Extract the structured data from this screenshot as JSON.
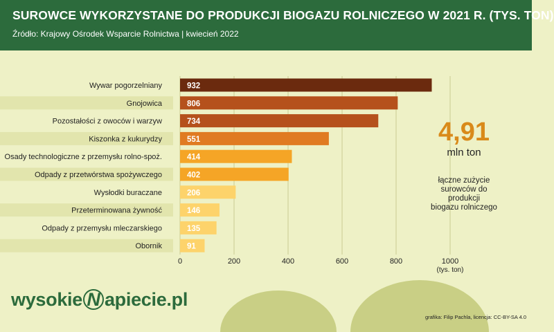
{
  "title": "SUROWCE WYKORZYSTANE DO PRODUKCJI BIOGAZU ROLNICZEGO W 2021 R. (TYS. TON)",
  "subtitle": "Źródło:  Krajowy Ośrodek Wsparcie Rolnictwa | kwiecień 2022",
  "total": {
    "value": "4,91",
    "unit": "mln ton",
    "description_lines": [
      "łączne zużycie",
      "surowców do",
      "produkcji",
      "biogazu rolniczego"
    ]
  },
  "logo": {
    "left": "wysokie",
    "n": "N",
    "right": "apiecie.pl"
  },
  "credit": "grafika: Filip Pachla, licencja: CC-BY-SA 4.0",
  "colors": {
    "header": "#2c6b3c",
    "background": "#eef1c6",
    "accent": "#d98a1a"
  },
  "chart_data": {
    "type": "bar",
    "orientation": "horizontal",
    "title": "SUROWCE WYKORZYSTANE DO PRODUKCJI BIOGAZU ROLNICZEGO W 2021 R. (TYS. TON)",
    "categories": [
      "Wywar pogorzelniany",
      "Gnojowica",
      "Pozostałości z owoców i warzyw",
      "Kiszonka z kukurydzy",
      "Osady technologiczne z przemysłu rolno-spoż.",
      "Odpady z przetwórstwa spożywczego",
      "Wysłodki buraczane",
      "Przeterminowana żywność",
      "Odpady z przemysłu mleczarskiego",
      "Obornik"
    ],
    "values": [
      932,
      806,
      734,
      551,
      414,
      402,
      206,
      146,
      135,
      91
    ],
    "data_labels": [
      "932",
      "806",
      "734",
      "551",
      "414",
      "402",
      "206",
      "146",
      "135",
      "91"
    ],
    "bar_colors": [
      "#6b2a0e",
      "#b5511c",
      "#b5511c",
      "#e07b22",
      "#f5a526",
      "#f5a526",
      "#fdd36b",
      "#fdd36b",
      "#fdd36b",
      "#fdd36b"
    ],
    "xlim": [
      0,
      1000
    ],
    "x_ticks": [
      0,
      200,
      400,
      600,
      800,
      1000
    ],
    "x_tick_labels": [
      "0",
      "200",
      "400",
      "600",
      "800",
      "1000"
    ],
    "x_unit": "(tys. ton)",
    "grid": true
  }
}
